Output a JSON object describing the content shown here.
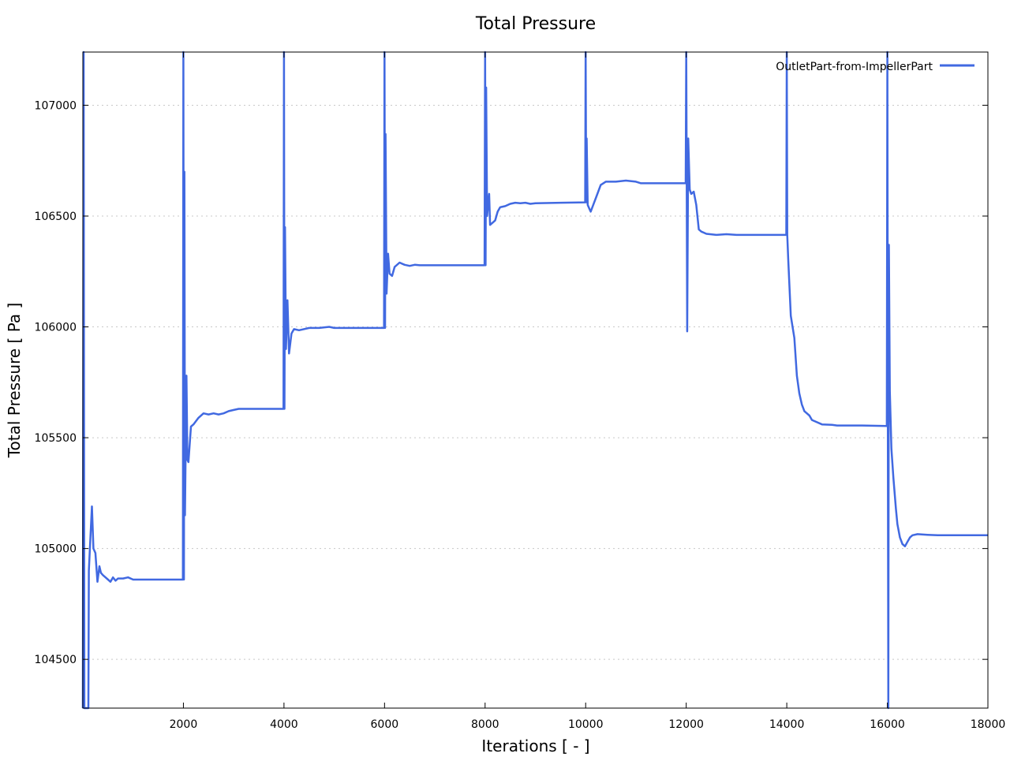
{
  "chart_data": {
    "type": "line",
    "title": "Total Pressure",
    "xlabel": "Iterations [ - ]",
    "ylabel": "Total Pressure [ Pa ]",
    "xlim": [
      0,
      18000
    ],
    "ylim": [
      104280,
      107240
    ],
    "x_ticks": [
      2000,
      4000,
      6000,
      8000,
      10000,
      12000,
      14000,
      16000,
      18000
    ],
    "y_ticks": [
      104500,
      105000,
      105500,
      106000,
      106500,
      107000
    ],
    "grid": "horizontal dotted",
    "legend_position": "top-right",
    "series": [
      {
        "name": "OutletPart-from-ImpellerPart",
        "color": "#4169e1",
        "points": [
          [
            0,
            104280
          ],
          [
            15,
            107240
          ],
          [
            30,
            104280
          ],
          [
            60,
            104280
          ],
          [
            90,
            104280
          ],
          [
            110,
            104280
          ],
          [
            120,
            104900
          ],
          [
            150,
            105050
          ],
          [
            180,
            105190
          ],
          [
            210,
            105000
          ],
          [
            250,
            104980
          ],
          [
            290,
            104850
          ],
          [
            330,
            104920
          ],
          [
            360,
            104890
          ],
          [
            400,
            104880
          ],
          [
            450,
            104870
          ],
          [
            500,
            104860
          ],
          [
            550,
            104850
          ],
          [
            600,
            104870
          ],
          [
            650,
            104855
          ],
          [
            700,
            104865
          ],
          [
            800,
            104865
          ],
          [
            900,
            104870
          ],
          [
            1000,
            104860
          ],
          [
            1500,
            104860
          ],
          [
            1990,
            104860
          ],
          [
            2000,
            107240
          ],
          [
            2010,
            104860
          ],
          [
            2020,
            106700
          ],
          [
            2030,
            105150
          ],
          [
            2060,
            105780
          ],
          [
            2080,
            105400
          ],
          [
            2100,
            105390
          ],
          [
            2150,
            105550
          ],
          [
            2200,
            105560
          ],
          [
            2300,
            105590
          ],
          [
            2400,
            105610
          ],
          [
            2500,
            105605
          ],
          [
            2600,
            105610
          ],
          [
            2700,
            105605
          ],
          [
            2800,
            105610
          ],
          [
            2900,
            105620
          ],
          [
            3000,
            105625
          ],
          [
            3100,
            105630
          ],
          [
            3500,
            105630
          ],
          [
            3990,
            105630
          ],
          [
            4000,
            107240
          ],
          [
            4010,
            105630
          ],
          [
            4020,
            106450
          ],
          [
            4040,
            105900
          ],
          [
            4070,
            106120
          ],
          [
            4100,
            105880
          ],
          [
            4150,
            105970
          ],
          [
            4200,
            105990
          ],
          [
            4300,
            105985
          ],
          [
            4500,
            105995
          ],
          [
            4700,
            105995
          ],
          [
            4900,
            106000
          ],
          [
            5000,
            105995
          ],
          [
            5500,
            105995
          ],
          [
            5990,
            105995
          ],
          [
            6000,
            107240
          ],
          [
            6010,
            105995
          ],
          [
            6020,
            106870
          ],
          [
            6040,
            106150
          ],
          [
            6070,
            106330
          ],
          [
            6100,
            106240
          ],
          [
            6150,
            106230
          ],
          [
            6200,
            106270
          ],
          [
            6300,
            106290
          ],
          [
            6400,
            106280
          ],
          [
            6500,
            106275
          ],
          [
            6600,
            106280
          ],
          [
            6700,
            106278
          ],
          [
            7000,
            106278
          ],
          [
            7990,
            106278
          ],
          [
            8000,
            107240
          ],
          [
            8010,
            106278
          ],
          [
            8020,
            107080
          ],
          [
            8040,
            106500
          ],
          [
            8080,
            106600
          ],
          [
            8100,
            106460
          ],
          [
            8150,
            106470
          ],
          [
            8200,
            106480
          ],
          [
            8250,
            106520
          ],
          [
            8300,
            106540
          ],
          [
            8400,
            106545
          ],
          [
            8500,
            106555
          ],
          [
            8600,
            106560
          ],
          [
            8700,
            106558
          ],
          [
            8800,
            106560
          ],
          [
            8900,
            106555
          ],
          [
            9000,
            106558
          ],
          [
            9500,
            106560
          ],
          [
            9990,
            106562
          ],
          [
            10000,
            107240
          ],
          [
            10010,
            106562
          ],
          [
            10020,
            106850
          ],
          [
            10040,
            106550
          ],
          [
            10080,
            106530
          ],
          [
            10100,
            106520
          ],
          [
            10150,
            106550
          ],
          [
            10200,
            106580
          ],
          [
            10300,
            106640
          ],
          [
            10400,
            106655
          ],
          [
            10600,
            106655
          ],
          [
            10800,
            106660
          ],
          [
            11000,
            106655
          ],
          [
            11100,
            106648
          ],
          [
            11500,
            106648
          ],
          [
            11990,
            106648
          ],
          [
            12000,
            107240
          ],
          [
            12010,
            106648
          ],
          [
            12020,
            105980
          ],
          [
            12040,
            106850
          ],
          [
            12070,
            106620
          ],
          [
            12100,
            106600
          ],
          [
            12150,
            106610
          ],
          [
            12200,
            106550
          ],
          [
            12250,
            106440
          ],
          [
            12300,
            106430
          ],
          [
            12400,
            106420
          ],
          [
            12600,
            106415
          ],
          [
            12800,
            106418
          ],
          [
            13000,
            106415
          ],
          [
            13500,
            106415
          ],
          [
            13990,
            106415
          ],
          [
            14000,
            107240
          ],
          [
            14010,
            106415
          ],
          [
            14030,
            106300
          ],
          [
            14080,
            106050
          ],
          [
            14150,
            105950
          ],
          [
            14200,
            105780
          ],
          [
            14250,
            105700
          ],
          [
            14300,
            105650
          ],
          [
            14350,
            105620
          ],
          [
            14400,
            105610
          ],
          [
            14450,
            105600
          ],
          [
            14500,
            105580
          ],
          [
            14600,
            105570
          ],
          [
            14700,
            105560
          ],
          [
            14900,
            105558
          ],
          [
            15000,
            105555
          ],
          [
            15500,
            105555
          ],
          [
            15990,
            105553
          ],
          [
            16000,
            107240
          ],
          [
            16010,
            105553
          ],
          [
            16020,
            104280
          ],
          [
            16030,
            106370
          ],
          [
            16050,
            105710
          ],
          [
            16080,
            105450
          ],
          [
            16120,
            105320
          ],
          [
            16170,
            105180
          ],
          [
            16200,
            105110
          ],
          [
            16250,
            105050
          ],
          [
            16300,
            105020
          ],
          [
            16350,
            105010
          ],
          [
            16400,
            105030
          ],
          [
            16450,
            105050
          ],
          [
            16500,
            105060
          ],
          [
            16600,
            105065
          ],
          [
            16800,
            105062
          ],
          [
            17000,
            105060
          ],
          [
            17500,
            105060
          ],
          [
            18000,
            105060
          ]
        ]
      }
    ]
  }
}
